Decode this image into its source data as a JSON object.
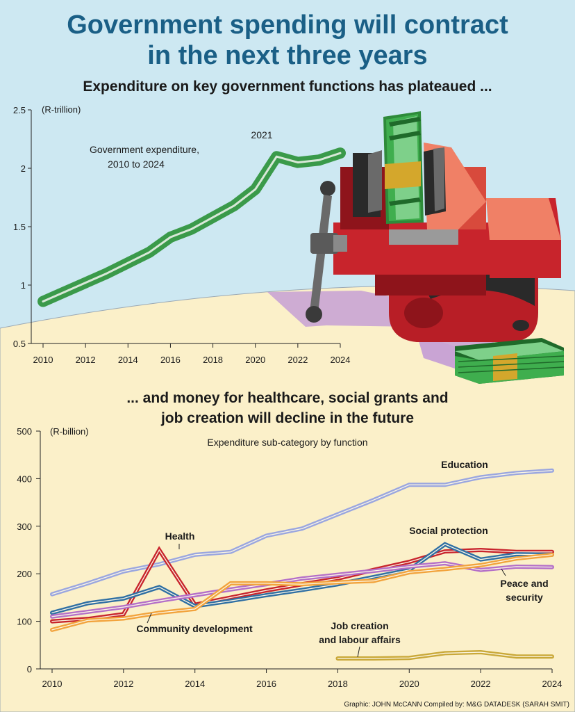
{
  "title": {
    "line1": "Government spending will contract",
    "line2": "in the next three years"
  },
  "subtitle_top": "Expenditure on key government functions has plateaued ...",
  "subtitle_bottom": {
    "line1": "... and money for healthcare, social grants and",
    "line2": "job creation will decline in the future"
  },
  "credit": "Graphic: JOHN McCANN  Compiled by: M&G DATADESK (SARAH SMIT)",
  "colors": {
    "sky": "#cde8f2",
    "ground": "#fbf0c9",
    "title": "#1a5f86",
    "gov_line": "#3a9a4a"
  },
  "illustration": {
    "name": "bench-vise-squeezing-money-icon"
  },
  "chart_data": [
    {
      "type": "line",
      "title": "Government expenditure, 2010 to 2024",
      "unit_label": "(R-trillion)",
      "xlim": [
        2010,
        2024
      ],
      "ylim": [
        0.5,
        2.5
      ],
      "xticks": [
        2010,
        2012,
        2014,
        2016,
        2018,
        2020,
        2022,
        2024
      ],
      "yticks": [
        {
          "value": 0.5,
          "label": "0.5"
        },
        {
          "value": 1,
          "label": "1"
        },
        {
          "value": 1.5,
          "label": "1.5"
        },
        {
          "value": 2,
          "label": "2"
        },
        {
          "value": 2.5,
          "label": "2.5"
        }
      ],
      "annotation": {
        "text": "2021",
        "x": 2021
      },
      "series": [
        {
          "color": "#3a9a4a",
          "x": [
            2010,
            2011,
            2012,
            2013,
            2014,
            2015,
            2016,
            2017,
            2018,
            2019,
            2020,
            2021,
            2022,
            2023,
            2024
          ],
          "values": [
            0.86,
            0.94,
            1.02,
            1.1,
            1.19,
            1.28,
            1.41,
            1.48,
            1.58,
            1.68,
            1.82,
            2.1,
            2.05,
            2.07,
            2.13
          ]
        }
      ]
    },
    {
      "type": "line",
      "title": "Expenditure sub-category by function",
      "unit_label": "(R-billion)",
      "xlim": [
        2010,
        2024
      ],
      "ylim": [
        0,
        500
      ],
      "xticks": [
        2010,
        2012,
        2014,
        2016,
        2018,
        2020,
        2022,
        2024
      ],
      "yticks": [
        0,
        100,
        200,
        300,
        400,
        500
      ],
      "series": [
        {
          "name": "Education",
          "color": "#9aa6df",
          "x": [
            2010,
            2011,
            2012,
            2013,
            2014,
            2015,
            2016,
            2017,
            2018,
            2019,
            2020,
            2021,
            2022,
            2023,
            2024
          ],
          "values": [
            157,
            180,
            205,
            220,
            240,
            246,
            280,
            295,
            325,
            355,
            387,
            387,
            403,
            412,
            417
          ]
        },
        {
          "name": "Health",
          "color": "#c8242c",
          "x": [
            2010,
            2011,
            2012,
            2013,
            2014,
            2015,
            2016,
            2017,
            2018,
            2019,
            2020,
            2021,
            2022,
            2023,
            2024
          ],
          "values": [
            100,
            105,
            115,
            250,
            135,
            150,
            165,
            178,
            190,
            208,
            225,
            247,
            250,
            246,
            246
          ]
        },
        {
          "name": "Social protection",
          "color": "#2f6fa3",
          "x": [
            2010,
            2011,
            2012,
            2013,
            2014,
            2015,
            2016,
            2017,
            2018,
            2019,
            2020,
            2021,
            2022,
            2023,
            2024
          ],
          "values": [
            118,
            138,
            148,
            172,
            132,
            143,
            155,
            166,
            178,
            193,
            208,
            262,
            230,
            241,
            240
          ]
        },
        {
          "name": "Peace and security",
          "color": "#b46fc8",
          "x": [
            2010,
            2011,
            2012,
            2013,
            2014,
            2015,
            2016,
            2017,
            2018,
            2019,
            2020,
            2021,
            2022,
            2023,
            2024
          ],
          "values": [
            110,
            120,
            130,
            143,
            155,
            167,
            178,
            190,
            198,
            206,
            215,
            222,
            208,
            215,
            214
          ]
        },
        {
          "name": "Community development",
          "color": "#f2a33c",
          "x": [
            2010,
            2011,
            2012,
            2013,
            2014,
            2015,
            2016,
            2017,
            2018,
            2019,
            2020,
            2021,
            2022,
            2023,
            2024
          ],
          "values": [
            82,
            102,
            106,
            118,
            126,
            180,
            180,
            178,
            182,
            185,
            203,
            210,
            218,
            232,
            240
          ]
        },
        {
          "name": "Job creation and labour affairs",
          "color": "#c9a838",
          "x": [
            2018,
            2019,
            2020,
            2021,
            2022,
            2023,
            2024
          ],
          "values": [
            22,
            22,
            23,
            33,
            35,
            26,
            26
          ]
        }
      ]
    }
  ]
}
